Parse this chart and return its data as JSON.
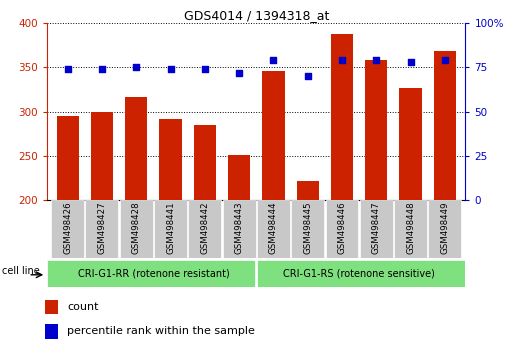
{
  "title": "GDS4014 / 1394318_at",
  "samples": [
    "GSM498426",
    "GSM498427",
    "GSM498428",
    "GSM498441",
    "GSM498442",
    "GSM498443",
    "GSM498444",
    "GSM498445",
    "GSM498446",
    "GSM498447",
    "GSM498448",
    "GSM498449"
  ],
  "counts": [
    295,
    300,
    316,
    292,
    285,
    251,
    346,
    221,
    388,
    358,
    326,
    368
  ],
  "percentile": [
    74,
    74,
    75,
    74,
    74,
    72,
    79,
    70,
    79,
    79,
    78,
    79
  ],
  "group1_label": "CRI-G1-RR (rotenone resistant)",
  "group2_label": "CRI-G1-RS (rotenone sensitive)",
  "group1_count": 6,
  "group2_count": 6,
  "bar_color": "#CC2200",
  "dot_color": "#0000CC",
  "group_bg": "#7EE07E",
  "cell_line_label": "cell line",
  "ylim_left": [
    200,
    400
  ],
  "ylim_right": [
    0,
    100
  ],
  "yticks_left": [
    200,
    250,
    300,
    350,
    400
  ],
  "yticks_right": [
    0,
    25,
    50,
    75,
    100
  ],
  "ytick_right_labels": [
    "0",
    "25",
    "50",
    "75",
    "100%"
  ],
  "legend_count": "count",
  "legend_pct": "percentile rank within the sample",
  "tick_bg": "#C8C8C8"
}
